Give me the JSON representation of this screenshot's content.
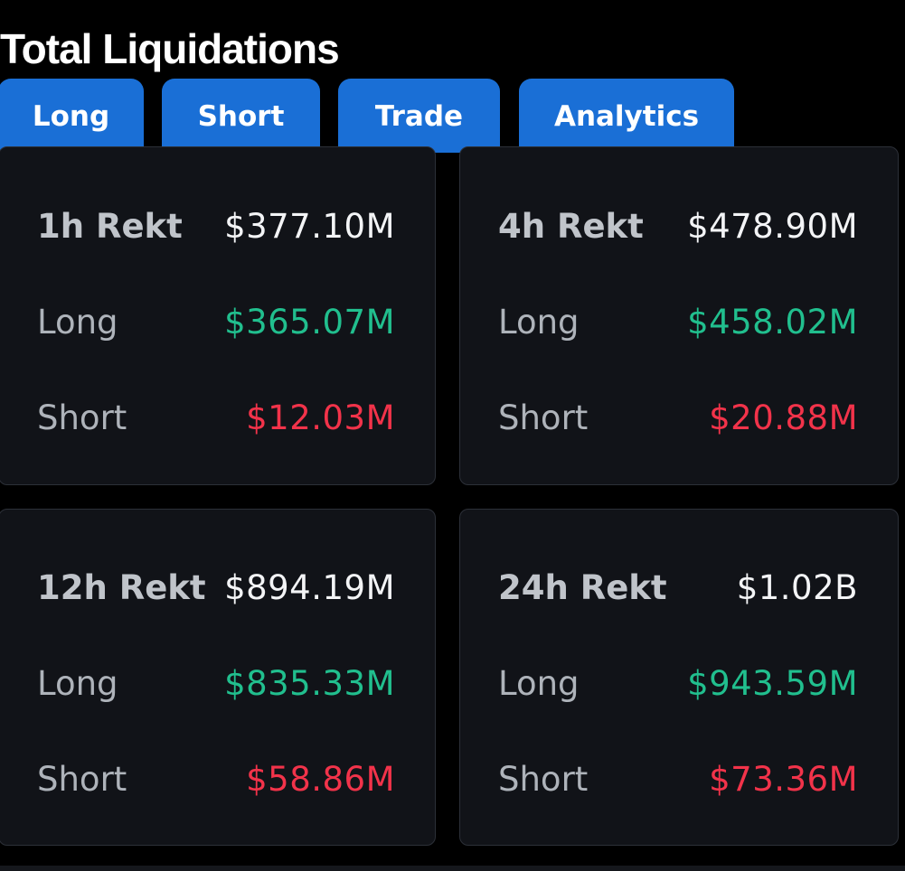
{
  "title": "Total Liquidations",
  "tabs": [
    {
      "label": "Long"
    },
    {
      "label": "Short"
    },
    {
      "label": "Trade"
    },
    {
      "label": "Analytics"
    }
  ],
  "cards": [
    {
      "period_label": "1h Rekt",
      "total": "$377.10M",
      "long_label": "Long",
      "long_value": "$365.07M",
      "short_label": "Short",
      "short_value": "$12.03M"
    },
    {
      "period_label": "4h Rekt",
      "total": "$478.90M",
      "long_label": "Long",
      "long_value": "$458.02M",
      "short_label": "Short",
      "short_value": "$20.88M"
    },
    {
      "period_label": "12h Rekt",
      "total": "$894.19M",
      "long_label": "Long",
      "long_value": "$835.33M",
      "short_label": "Short",
      "short_value": "$58.86M"
    },
    {
      "period_label": "24h Rekt",
      "total": "$1.02B",
      "long_label": "Long",
      "long_value": "$943.59M",
      "short_label": "Short",
      "short_value": "$73.36M"
    }
  ],
  "colors": {
    "background": "#000000",
    "card": "#111318",
    "tab": "#1a6fd6",
    "long": "#21bf8e",
    "short": "#f2334a"
  }
}
